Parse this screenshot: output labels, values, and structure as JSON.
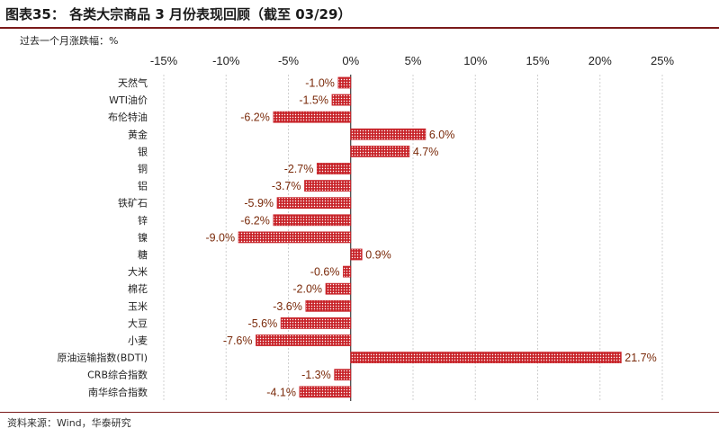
{
  "title": "图表35：  各类大宗商品 3 月份表现回顾（截至 03/29）",
  "source": "资料来源：Wind，华泰研究",
  "colors": {
    "bar": "#c8242a",
    "bar_dot": "#ffffff",
    "grid": "#d0d0d0",
    "accent": "#7a1a1a",
    "value_text": "#7a2a0a"
  },
  "chart_data": {
    "type": "bar",
    "orientation": "horizontal",
    "unit_label": "过去一个月涨跌幅：%",
    "xlim": [
      -15,
      25
    ],
    "x_ticks": [
      -15,
      -10,
      -5,
      0,
      5,
      10,
      15,
      20,
      25
    ],
    "x_tick_labels": [
      "-15%",
      "-10%",
      "-5%",
      "0%",
      "5%",
      "10%",
      "15%",
      "20%",
      "25%"
    ],
    "grid": true,
    "categories": [
      "天然气",
      "WTI油价",
      "布伦特油",
      "黄金",
      "银",
      "铜",
      "铝",
      "铁矿石",
      "锌",
      "镍",
      "糖",
      "大米",
      "棉花",
      "玉米",
      "大豆",
      "小麦",
      "原油运输指数(BDTI)",
      "CRB综合指数",
      "南华综合指数"
    ],
    "values": [
      -1.0,
      -1.5,
      -6.2,
      6.0,
      4.7,
      -2.7,
      -3.7,
      -5.9,
      -6.2,
      -9.0,
      0.9,
      -0.6,
      -2.0,
      -3.6,
      -5.6,
      -7.6,
      21.7,
      -1.3,
      -4.1
    ],
    "value_labels": [
      "-1.0%",
      "-1.5%",
      "-6.2%",
      "6.0%",
      "4.7%",
      "-2.7%",
      "-3.7%",
      "-5.9%",
      "-6.2%",
      "-9.0%",
      "0.9%",
      "-0.6%",
      "-2.0%",
      "-3.6%",
      "-5.6%",
      "-7.6%",
      "21.7%",
      "-1.3%",
      "-4.1%"
    ]
  }
}
